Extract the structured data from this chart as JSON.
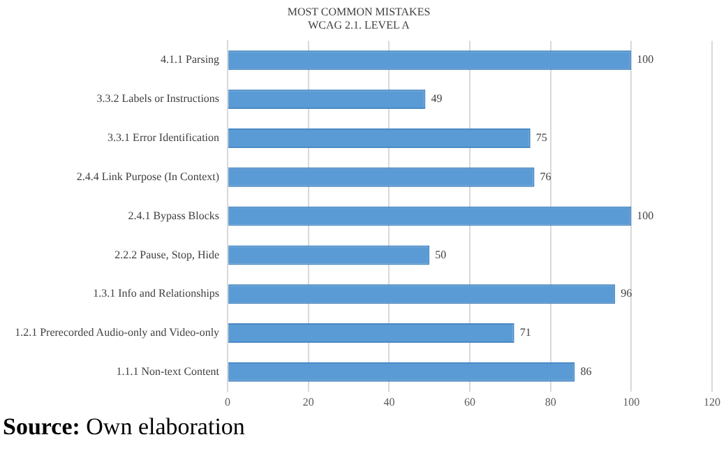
{
  "chart_data": {
    "type": "bar",
    "orientation": "horizontal",
    "title": "MOST COMMON MISTAKES",
    "subtitle": "WCAG 2.1. LEVEL A",
    "categories": [
      "4.1.1 Parsing",
      "3.3.2 Labels or Instructions",
      "3.3.1 Error Identification",
      "2.4.4 Link Purpose (In Context)",
      "2.4.1 Bypass Blocks",
      "2.2.2 Pause, Stop, Hide",
      "1.3.1 Info and Relationships",
      "1.2.1 Prerecorded Audio-only and Video-only",
      "1.1.1 Non-text Content"
    ],
    "values": [
      100,
      49,
      75,
      76,
      100,
      50,
      96,
      71,
      86
    ],
    "color": "#5b9bd5",
    "xlim": [
      0,
      120
    ],
    "xticks": [
      0,
      20,
      40,
      60,
      80,
      100,
      120
    ],
    "grid": "x",
    "data_labels": true,
    "legend": false,
    "annotations": [
      "Source: Own elaboration"
    ]
  }
}
